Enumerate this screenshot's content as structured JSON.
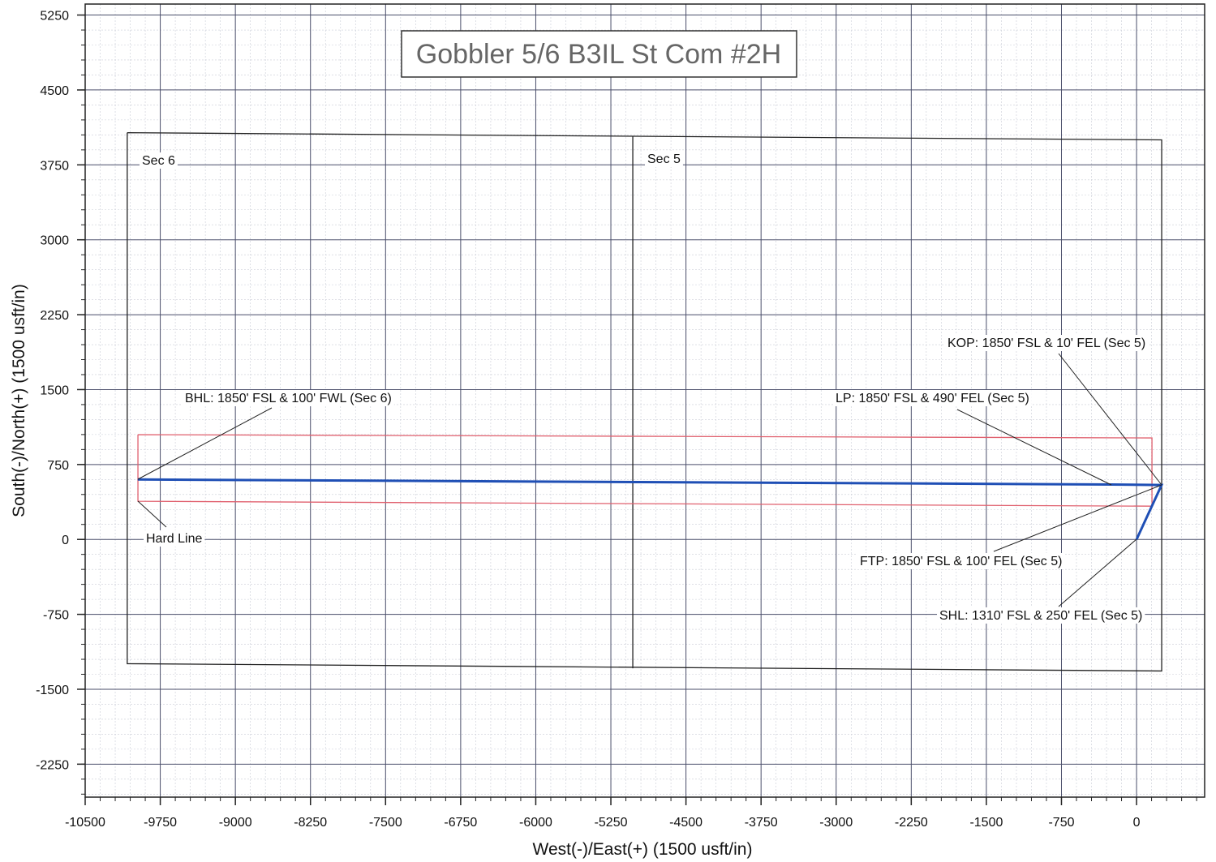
{
  "chart_data": {
    "type": "line",
    "title": "Gobbler 5/6 B3IL St Com #2H",
    "x_label": "West(-)/East(+) (1500 usft/in)",
    "y_label": "South(-)/North(+) (1500 usft/in)",
    "xlim": [
      -10500,
      680
    ],
    "ylim": [
      -2580,
      5360
    ],
    "xticks": [
      -10500,
      -9750,
      -9000,
      -8250,
      -7500,
      -6750,
      -6000,
      -5250,
      -4500,
      -3750,
      -3000,
      -2250,
      -1500,
      -750,
      0
    ],
    "yticks": [
      -2250,
      -1500,
      -750,
      0,
      750,
      1500,
      2250,
      3000,
      3750,
      4500,
      5250
    ],
    "grid": true,
    "minor_grid": true,
    "well_path": {
      "color": "#1f4fb5",
      "x": [
        0,
        250,
        -250,
        -9975
      ],
      "y": [
        0,
        545,
        550,
        600
      ]
    },
    "section_boundaries": {
      "color": "#222222",
      "lines": [
        {
          "x": [
            -10080,
            251,
            251,
            -10080,
            -10080
          ],
          "y": [
            4072,
            4000,
            -1317,
            -1244,
            4072
          ]
        },
        {
          "x": [
            -5031,
            -5031
          ],
          "y": [
            4035,
            -1290
          ]
        }
      ]
    },
    "hard_line": {
      "color": "#e0606e",
      "x": [
        -9973,
        154,
        154,
        -9973,
        -9973
      ],
      "y": [
        1049,
        1016,
        333,
        382,
        1049
      ]
    },
    "section_labels": [
      "Sec 6",
      "Sec 5"
    ],
    "hard_line_label": "Hard Line",
    "annotations": [
      "BHL: 1850' FSL & 100' FWL (Sec 6)",
      "LP: 1850' FSL & 490' FEL (Sec 5)",
      "KOP: 1850' FSL & 10' FEL (Sec 5)",
      "FTP: 1850' FSL & 100' FEL (Sec 5)",
      "SHL: 1310' FSL & 250' FEL (Sec 5)"
    ]
  }
}
